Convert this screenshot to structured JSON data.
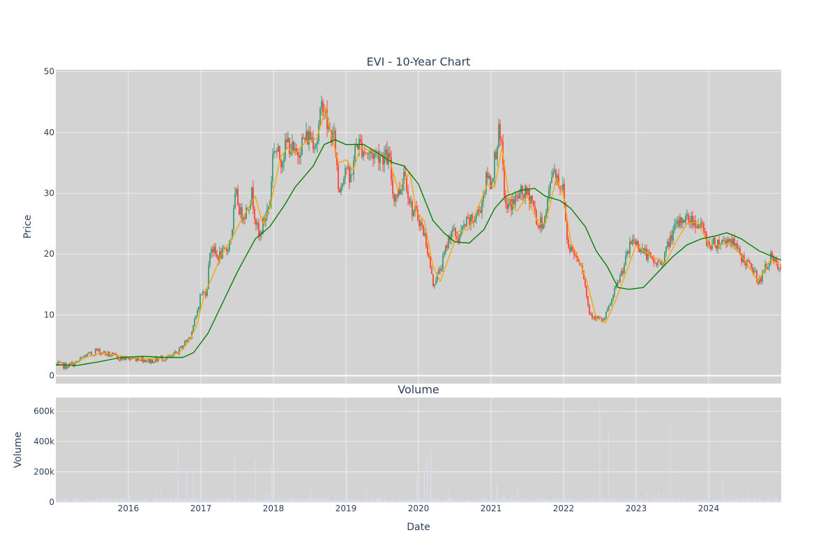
{
  "chart_data": [
    {
      "type": "candlestick",
      "title": "EVI - 10-Year Chart",
      "ylabel": "Price",
      "ylim": [
        -1.3,
        50.3
      ],
      "yticks": [
        0,
        10,
        20,
        30,
        40,
        50
      ],
      "xlim": [
        2015.0,
        2025.0
      ],
      "grid": true,
      "up_color": "#3d9970",
      "down_color": "#ff4136",
      "close_path": [
        [
          2015.0,
          1.8
        ],
        [
          2015.15,
          1.6
        ],
        [
          2015.3,
          2.2
        ],
        [
          2015.4,
          3.3
        ],
        [
          2015.5,
          3.5
        ],
        [
          2015.55,
          4.2
        ],
        [
          2015.7,
          3.6
        ],
        [
          2015.85,
          3.0
        ],
        [
          2016.0,
          2.8
        ],
        [
          2016.15,
          2.9
        ],
        [
          2016.3,
          2.4
        ],
        [
          2016.45,
          2.9
        ],
        [
          2016.6,
          3.0
        ],
        [
          2016.7,
          4.2
        ],
        [
          2016.85,
          6.5
        ],
        [
          2016.93,
          9.5
        ],
        [
          2017.0,
          13.5
        ],
        [
          2017.08,
          13.8
        ],
        [
          2017.13,
          21.5
        ],
        [
          2017.22,
          19.5
        ],
        [
          2017.35,
          20.5
        ],
        [
          2017.42,
          23.0
        ],
        [
          2017.48,
          30.0
        ],
        [
          2017.55,
          26.5
        ],
        [
          2017.62,
          27.0
        ],
        [
          2017.7,
          30.0
        ],
        [
          2017.8,
          22.5
        ],
        [
          2017.88,
          26.0
        ],
        [
          2017.95,
          28.5
        ],
        [
          2018.0,
          38.0
        ],
        [
          2018.1,
          35.5
        ],
        [
          2018.2,
          38.5
        ],
        [
          2018.3,
          36.0
        ],
        [
          2018.4,
          38.5
        ],
        [
          2018.5,
          39.5
        ],
        [
          2018.6,
          38.5
        ],
        [
          2018.68,
          45.5
        ],
        [
          2018.75,
          40.5
        ],
        [
          2018.85,
          38.5
        ],
        [
          2018.9,
          30.0
        ],
        [
          2019.0,
          35.0
        ],
        [
          2019.05,
          31.5
        ],
        [
          2019.15,
          38.5
        ],
        [
          2019.3,
          36.5
        ],
        [
          2019.45,
          36.5
        ],
        [
          2019.6,
          35.5
        ],
        [
          2019.65,
          29.5
        ],
        [
          2019.75,
          30.5
        ],
        [
          2019.8,
          34.0
        ],
        [
          2019.9,
          27.5
        ],
        [
          2020.0,
          26.0
        ],
        [
          2020.1,
          22.5
        ],
        [
          2020.2,
          15.0
        ],
        [
          2020.3,
          17.5
        ],
        [
          2020.45,
          24.0
        ],
        [
          2020.55,
          22.5
        ],
        [
          2020.65,
          25.0
        ],
        [
          2020.75,
          25.5
        ],
        [
          2020.85,
          27.5
        ],
        [
          2020.95,
          33.0
        ],
        [
          2021.0,
          31.5
        ],
        [
          2021.1,
          40.0
        ],
        [
          2021.15,
          36.5
        ],
        [
          2021.2,
          27.5
        ],
        [
          2021.3,
          28.5
        ],
        [
          2021.42,
          30.0
        ],
        [
          2021.55,
          29.5
        ],
        [
          2021.65,
          24.5
        ],
        [
          2021.75,
          26.0
        ],
        [
          2021.85,
          34.5
        ],
        [
          2021.95,
          31.5
        ],
        [
          2022.0,
          30.5
        ],
        [
          2022.05,
          22.0
        ],
        [
          2022.15,
          20.0
        ],
        [
          2022.25,
          18.5
        ],
        [
          2022.35,
          10.5
        ],
        [
          2022.45,
          9.5
        ],
        [
          2022.55,
          9.0
        ],
        [
          2022.65,
          12.0
        ],
        [
          2022.8,
          17.0
        ],
        [
          2022.95,
          22.5
        ],
        [
          2023.1,
          20.5
        ],
        [
          2023.25,
          18.5
        ],
        [
          2023.35,
          18.5
        ],
        [
          2023.5,
          23.5
        ],
        [
          2023.65,
          26.0
        ],
        [
          2023.8,
          25.5
        ],
        [
          2023.9,
          24.5
        ],
        [
          2024.0,
          21.5
        ],
        [
          2024.15,
          22.0
        ],
        [
          2024.3,
          22.5
        ],
        [
          2024.45,
          19.5
        ],
        [
          2024.6,
          17.5
        ],
        [
          2024.7,
          15.5
        ],
        [
          2024.85,
          19.5
        ],
        [
          2025.0,
          17.0
        ]
      ],
      "series": [
        {
          "name": "",
          "color": "#ffa500",
          "points": [
            [
              2015.0,
              1.7
            ],
            [
              2015.2,
              1.8
            ],
            [
              2015.45,
              3.2
            ],
            [
              2015.65,
              3.8
            ],
            [
              2015.9,
              3.2
            ],
            [
              2016.2,
              2.8
            ],
            [
              2016.45,
              2.8
            ],
            [
              2016.7,
              3.8
            ],
            [
              2016.85,
              5.8
            ],
            [
              2016.95,
              8.5
            ],
            [
              2017.05,
              13.5
            ],
            [
              2017.15,
              16.0
            ],
            [
              2017.28,
              19.8
            ],
            [
              2017.45,
              23.0
            ],
            [
              2017.55,
              25.5
            ],
            [
              2017.65,
              27.5
            ],
            [
              2017.75,
              29.5
            ],
            [
              2017.85,
              25.0
            ],
            [
              2017.95,
              27.5
            ],
            [
              2018.1,
              36.0
            ],
            [
              2018.2,
              37.5
            ],
            [
              2018.3,
              36.5
            ],
            [
              2018.45,
              38.5
            ],
            [
              2018.6,
              39.0
            ],
            [
              2018.72,
              44.0
            ],
            [
              2018.8,
              39.5
            ],
            [
              2018.9,
              35.0
            ],
            [
              2019.0,
              35.5
            ],
            [
              2019.1,
              33.8
            ],
            [
              2019.2,
              37.5
            ],
            [
              2019.4,
              36.8
            ],
            [
              2019.6,
              35.5
            ],
            [
              2019.72,
              30.5
            ],
            [
              2019.88,
              33.5
            ],
            [
              2019.97,
              27.0
            ],
            [
              2020.08,
              25.5
            ],
            [
              2020.2,
              18.0
            ],
            [
              2020.3,
              15.5
            ],
            [
              2020.42,
              19.5
            ],
            [
              2020.55,
              23.8
            ],
            [
              2020.68,
              24.0
            ],
            [
              2020.8,
              27.0
            ],
            [
              2020.95,
              31.5
            ],
            [
              2021.05,
              31.0
            ],
            [
              2021.15,
              37.5
            ],
            [
              2021.25,
              29.0
            ],
            [
              2021.35,
              27.0
            ],
            [
              2021.5,
              29.5
            ],
            [
              2021.65,
              25.0
            ],
            [
              2021.75,
              25.0
            ],
            [
              2021.9,
              32.5
            ],
            [
              2022.0,
              29.5
            ],
            [
              2022.1,
              22.0
            ],
            [
              2022.2,
              19.5
            ],
            [
              2022.32,
              15.5
            ],
            [
              2022.45,
              9.5
            ],
            [
              2022.58,
              8.7
            ],
            [
              2022.72,
              12.5
            ],
            [
              2022.88,
              17.5
            ],
            [
              2023.0,
              21.5
            ],
            [
              2023.2,
              19.8
            ],
            [
              2023.4,
              18.5
            ],
            [
              2023.55,
              22.0
            ],
            [
              2023.7,
              25.0
            ],
            [
              2023.85,
              25.3
            ],
            [
              2024.0,
              21.5
            ],
            [
              2024.15,
              21.5
            ],
            [
              2024.3,
              21.8
            ],
            [
              2024.5,
              19.0
            ],
            [
              2024.68,
              15.5
            ],
            [
              2024.85,
              19.0
            ],
            [
              2025.0,
              18.2
            ]
          ]
        },
        {
          "name": "",
          "color": "#008000",
          "points": [
            [
              2015.0,
              1.8
            ],
            [
              2015.3,
              1.7
            ],
            [
              2015.6,
              2.3
            ],
            [
              2015.9,
              3.0
            ],
            [
              2016.2,
              3.2
            ],
            [
              2016.5,
              3.0
            ],
            [
              2016.75,
              3.0
            ],
            [
              2016.9,
              3.8
            ],
            [
              2017.1,
              7.0
            ],
            [
              2017.3,
              12.0
            ],
            [
              2017.5,
              17.0
            ],
            [
              2017.75,
              22.5
            ],
            [
              2017.95,
              24.5
            ],
            [
              2018.15,
              28.0
            ],
            [
              2018.3,
              31.0
            ],
            [
              2018.55,
              34.5
            ],
            [
              2018.7,
              38.0
            ],
            [
              2018.85,
              38.8
            ],
            [
              2019.0,
              38.0
            ],
            [
              2019.25,
              38.0
            ],
            [
              2019.45,
              36.5
            ],
            [
              2019.65,
              35.0
            ],
            [
              2019.8,
              34.5
            ],
            [
              2020.0,
              31.5
            ],
            [
              2020.1,
              28.5
            ],
            [
              2020.2,
              25.5
            ],
            [
              2020.35,
              23.5
            ],
            [
              2020.5,
              22.0
            ],
            [
              2020.7,
              21.8
            ],
            [
              2020.9,
              24.0
            ],
            [
              2021.05,
              27.5
            ],
            [
              2021.2,
              29.5
            ],
            [
              2021.42,
              30.5
            ],
            [
              2021.6,
              30.8
            ],
            [
              2021.75,
              29.5
            ],
            [
              2021.95,
              28.8
            ],
            [
              2022.1,
              27.5
            ],
            [
              2022.3,
              24.5
            ],
            [
              2022.45,
              20.5
            ],
            [
              2022.6,
              18.0
            ],
            [
              2022.75,
              14.5
            ],
            [
              2022.9,
              14.2
            ],
            [
              2023.1,
              14.5
            ],
            [
              2023.3,
              17.0
            ],
            [
              2023.5,
              19.5
            ],
            [
              2023.7,
              21.5
            ],
            [
              2023.9,
              22.5
            ],
            [
              2024.1,
              23.0
            ],
            [
              2024.25,
              23.5
            ],
            [
              2024.45,
              22.5
            ],
            [
              2024.7,
              20.5
            ],
            [
              2024.9,
              19.5
            ],
            [
              2025.0,
              19.0
            ]
          ]
        }
      ]
    },
    {
      "type": "bar",
      "title": "Volume",
      "ylabel": "Volume",
      "xlabel": "Date",
      "ylim": [
        0,
        690000
      ],
      "yticks": [
        0,
        200000,
        400000,
        600000
      ],
      "ytick_labels": [
        "0",
        "200k",
        "400k",
        "600k"
      ],
      "xlim": [
        2015.0,
        2025.0
      ],
      "xticks": [
        2016,
        2017,
        2018,
        2019,
        2020,
        2021,
        2022,
        2023,
        2024
      ],
      "xtick_labels": [
        "2016",
        "2017",
        "2018",
        "2019",
        "2020",
        "2021",
        "2022",
        "2023",
        "2024"
      ],
      "bar_color": "#d9dceb",
      "grid": true,
      "spikes": [
        [
          2016.68,
          400000
        ],
        [
          2016.8,
          220000
        ],
        [
          2016.9,
          205000
        ],
        [
          2017.47,
          310000
        ],
        [
          2017.75,
          280000
        ],
        [
          2017.97,
          245000
        ],
        [
          2019.02,
          350000
        ],
        [
          2019.97,
          180000
        ],
        [
          2020.08,
          230000
        ],
        [
          2020.12,
          290000
        ],
        [
          2020.17,
          355000
        ],
        [
          2021.08,
          120000
        ],
        [
          2022.5,
          650000
        ],
        [
          2022.62,
          480000
        ],
        [
          2023.47,
          525000
        ],
        [
          2024.2,
          155000
        ]
      ]
    }
  ]
}
